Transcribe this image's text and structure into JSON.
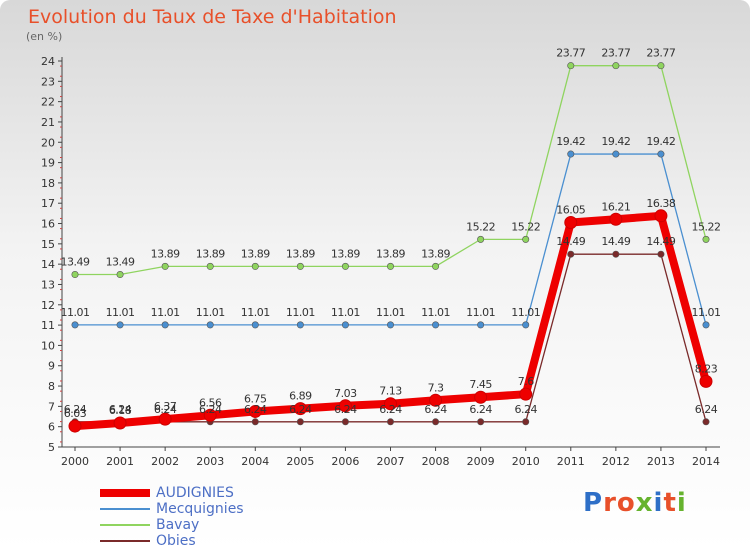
{
  "title": "Evolution du Taux de Taxe d'Habitation",
  "unit_label": "(en %)",
  "logo": {
    "text": "Proxiti",
    "colors": [
      "#2e6fc7",
      "#e8502a",
      "#e8502a",
      "#66b32e",
      "#2e6fc7",
      "#e8502a",
      "#66b32e"
    ]
  },
  "chart_data": {
    "type": "line",
    "x": [
      "2000",
      "2001",
      "2002",
      "2003",
      "2004",
      "2005",
      "2006",
      "2007",
      "2008",
      "2009",
      "2010",
      "2011",
      "2012",
      "2013",
      "2014"
    ],
    "ylim": [
      5,
      24
    ],
    "yticks": [
      5,
      6,
      7,
      8,
      9,
      10,
      11,
      12,
      13,
      14,
      15,
      16,
      17,
      18,
      19,
      20,
      21,
      22,
      23,
      24
    ],
    "grid": false,
    "legend_position": "bottom-left",
    "series": [
      {
        "name": "AUDIGNIES",
        "color": "#ee0000",
        "values": [
          6.03,
          6.18,
          6.37,
          6.56,
          6.75,
          6.89,
          7.03,
          7.13,
          7.3,
          7.45,
          7.6,
          16.05,
          16.21,
          16.38,
          8.23
        ],
        "labels": [
          "6.03",
          "6.18",
          "6.37",
          "6.56",
          "6.75",
          "6.89",
          "7.03",
          "7.13",
          "7.3",
          "7.45",
          "7.6",
          "16.05",
          "16.21",
          "16.38",
          "8.23"
        ]
      },
      {
        "name": "Mecquignies",
        "color": "#4a8fd0",
        "values": [
          11.01,
          11.01,
          11.01,
          11.01,
          11.01,
          11.01,
          11.01,
          11.01,
          11.01,
          11.01,
          11.01,
          19.42,
          19.42,
          19.42,
          11.01
        ],
        "labels": [
          "11.01",
          "11.01",
          "11.01",
          "11.01",
          "11.01",
          "11.01",
          "11.01",
          "11.01",
          "11.01",
          "11.01",
          "11.01",
          "19.42",
          "19.42",
          "19.42",
          "11.01"
        ]
      },
      {
        "name": "Bavay",
        "color": "#8fd45f",
        "values": [
          13.49,
          13.49,
          13.89,
          13.89,
          13.89,
          13.89,
          13.89,
          13.89,
          13.89,
          15.22,
          15.22,
          23.77,
          23.77,
          23.77,
          15.22
        ],
        "labels": [
          "13.49",
          "13.49",
          "13.89",
          "13.89",
          "13.89",
          "13.89",
          "13.89",
          "13.89",
          "13.89",
          "15.22",
          "15.22",
          "23.77",
          "23.77",
          "23.77",
          "15.22"
        ]
      },
      {
        "name": "Obies",
        "color": "#7a2a2a",
        "values": [
          6.24,
          6.24,
          6.24,
          6.24,
          6.24,
          6.24,
          6.24,
          6.24,
          6.24,
          6.24,
          6.24,
          14.49,
          14.49,
          14.49,
          6.24
        ],
        "labels": [
          "6.24",
          "6.24",
          "6.24",
          "6.24",
          "6.24",
          "6.24",
          "6.24",
          "6.24",
          "6.24",
          "6.24",
          "6.24",
          "14.49",
          "14.49",
          "14.49",
          "6.24"
        ]
      }
    ]
  }
}
